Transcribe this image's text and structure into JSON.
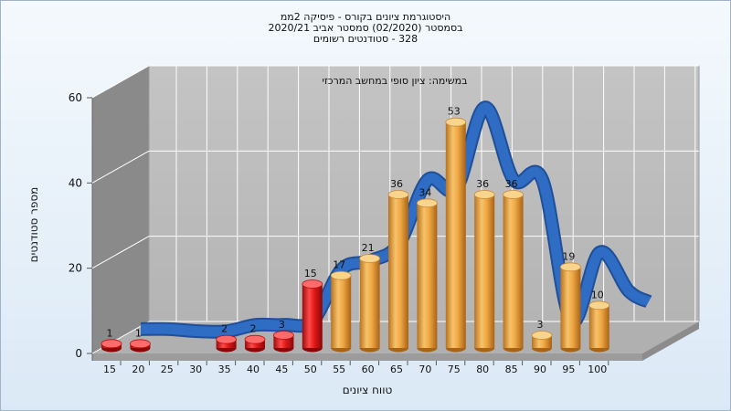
{
  "titles": [
    "היסטוגרמת ציונים בקורס - פיסיקה 2ממ",
    "בסמסטר  (02/2020)  סמסטר אביב 2020/21",
    "328 - סטודנטים רשומים"
  ],
  "chart_data": {
    "type": "bar",
    "annotation": "במשימה: ציון סופי במחשב המרכזי",
    "xlabel": "טווח ציונים",
    "ylabel": "מספר סטודנטים",
    "ylim": [
      0,
      60
    ],
    "yticks": [
      "0",
      "20",
      "40",
      "60"
    ],
    "categories": [
      "15",
      "20",
      "25",
      "30",
      "35",
      "40",
      "45",
      "50",
      "55",
      "60",
      "65",
      "70",
      "75",
      "80",
      "85",
      "90",
      "95",
      "100"
    ],
    "values": [
      1,
      1,
      0,
      0,
      2,
      2,
      3,
      15,
      17,
      21,
      36,
      34,
      53,
      36,
      36,
      3,
      19,
      10
    ],
    "failing_color": "#e01818",
    "passing_color": "#f0a845",
    "curve_color": "#2f6cc4",
    "grid": true
  }
}
